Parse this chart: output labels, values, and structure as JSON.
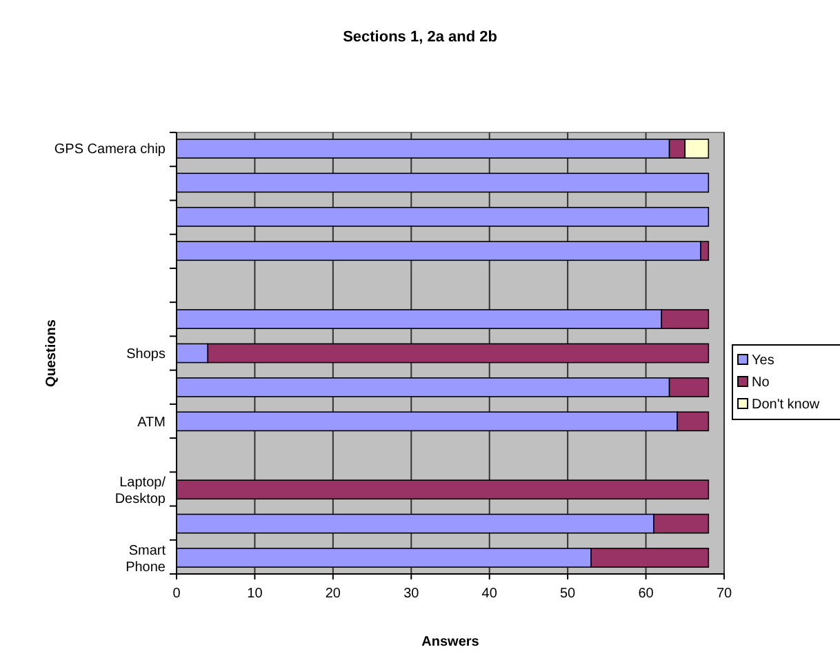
{
  "chart_data": {
    "type": "bar",
    "orientation": "horizontal",
    "stacked": true,
    "title": "Sections 1, 2a and 2b",
    "xlabel": "Answers",
    "ylabel": "Questions",
    "categories": [
      "GPS Camera chip",
      null,
      null,
      null,
      null,
      null,
      "Shops",
      null,
      "ATM",
      null,
      "Laptop/ Desktop",
      null,
      "Smart Phone"
    ],
    "series": [
      {
        "name": "Yes",
        "color": "#9999ff",
        "values": [
          63,
          68,
          68,
          67,
          null,
          62,
          4,
          63,
          64,
          null,
          0,
          61,
          53
        ]
      },
      {
        "name": "No",
        "color": "#993366",
        "values": [
          2,
          0,
          0,
          1,
          null,
          6,
          64,
          5,
          4,
          null,
          68,
          7,
          15
        ]
      },
      {
        "name": "Don't know",
        "color": "#ffffcc",
        "values": [
          3,
          0,
          0,
          0,
          null,
          0,
          0,
          0,
          0,
          null,
          0,
          0,
          0
        ]
      }
    ],
    "xlim": [
      0,
      70
    ],
    "xticks": [
      0,
      10,
      20,
      30,
      40,
      50,
      60,
      70
    ],
    "grid": "x",
    "legend": "right"
  }
}
